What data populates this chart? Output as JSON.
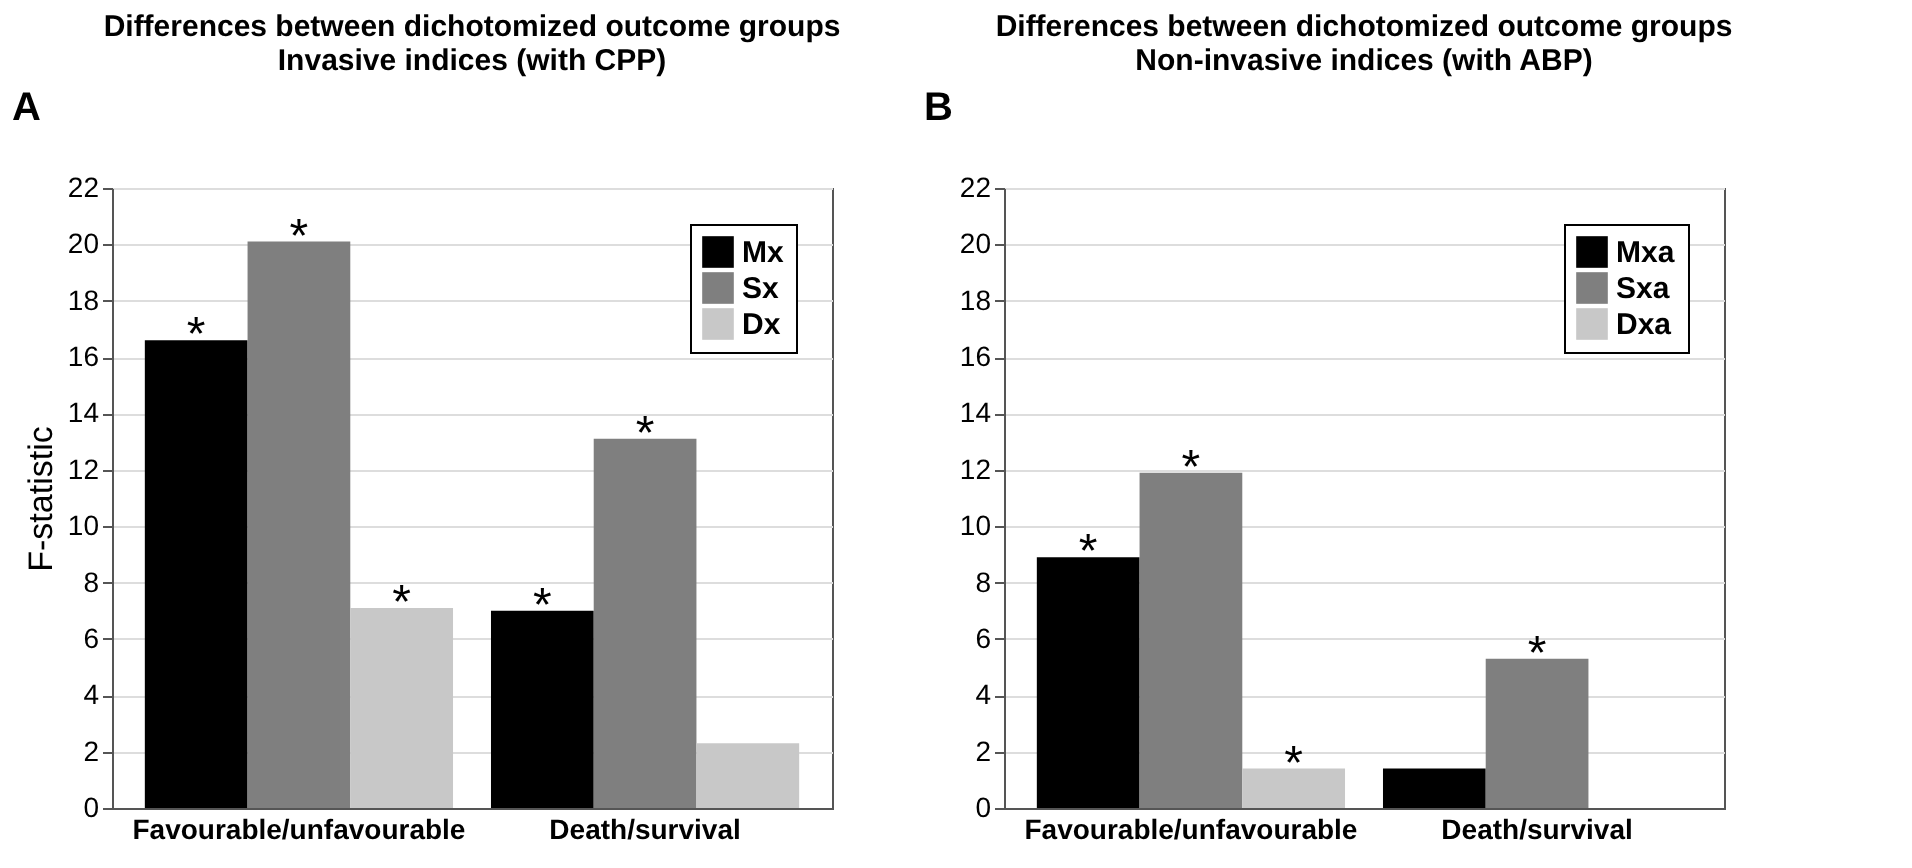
{
  "chart_data": [
    {
      "type": "bar",
      "title": "Differences between dichotomized outcome groups",
      "subtitle": "Invasive indices (with CPP)",
      "ylabel": "F-statistic",
      "categories": [
        "Favourable/unfavourable",
        "Death/survival"
      ],
      "series": [
        {
          "name": "Mx",
          "color": "#000000",
          "values": [
            16.6,
            7.0
          ],
          "value_labels": [
            "*",
            "*"
          ]
        },
        {
          "name": "Sx",
          "color": "#7f7f7f",
          "values": [
            20.1,
            13.1
          ],
          "value_labels": [
            "*",
            "*"
          ]
        },
        {
          "name": "Dx",
          "color": "#c8c8c8",
          "values": [
            7.1,
            2.3
          ],
          "value_labels": [
            "*",
            null
          ]
        }
      ],
      "ylim": [
        0,
        22
      ],
      "yticks": [
        0,
        2,
        4,
        6,
        8,
        10,
        12,
        14,
        16,
        18,
        20,
        22
      ],
      "grid": "y",
      "legend": "top right",
      "annotations": [
        "A"
      ]
    },
    {
      "type": "bar",
      "title": "Differences between dichotomized outcome groups",
      "subtitle": "Non-invasive indices (with ABP)",
      "categories": [
        "Favourable/unfavourable",
        "Death/survival"
      ],
      "series": [
        {
          "name": "Mxa",
          "color": "#000000",
          "values": [
            8.9,
            1.4
          ],
          "value_labels": [
            "*",
            null
          ]
        },
        {
          "name": "Sxa",
          "color": "#7f7f7f",
          "values": [
            11.9,
            5.3
          ],
          "value_labels": [
            "*",
            "*"
          ]
        },
        {
          "name": "Dxa",
          "color": "#c8c8c8",
          "values": [
            1.4,
            null
          ],
          "value_labels": [
            "*",
            null
          ]
        }
      ],
      "ylim": [
        0,
        22
      ],
      "yticks": [
        0,
        2,
        4,
        6,
        8,
        10,
        12,
        14,
        16,
        18,
        20,
        22
      ],
      "grid": "y",
      "legend": "top right",
      "annotations": [
        "B"
      ]
    }
  ]
}
